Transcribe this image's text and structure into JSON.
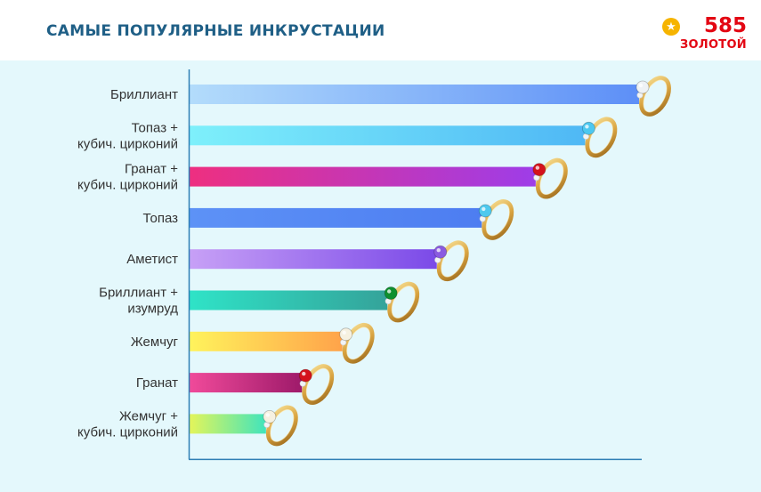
{
  "header": {
    "title": "САМЫЕ ПОПУЛЯРНЫЕ ИНКРУСТАЦИИ"
  },
  "logo": {
    "number": "585",
    "word": "ЗОЛОТОЙ",
    "star_icon": "star-icon",
    "color": "#e30613"
  },
  "chart_data": {
    "type": "bar",
    "orientation": "horizontal",
    "title": "САМЫЕ ПОПУЛЯРНЫЕ ИНКРУСТАЦИИ",
    "categories": [
      [
        "Бриллиант"
      ],
      [
        "Топаз +",
        "кубич. цирконий"
      ],
      [
        "Гранат +",
        "кубич. цирконий"
      ],
      [
        "Топаз"
      ],
      [
        "Аметист"
      ],
      [
        "Бриллиант +",
        "изумруд"
      ],
      [
        "Жемчуг"
      ],
      [
        "Гранат"
      ],
      [
        "Жемчуг +",
        "кубич. цирконий"
      ]
    ],
    "values": [
      100,
      88,
      77,
      65,
      55,
      44,
      34,
      25,
      17
    ],
    "value_scale": "relative, top bar = 100",
    "xlim": [
      0,
      100
    ],
    "grid": false,
    "legend": "none",
    "bar_gradients": [
      [
        "#b3dcfb",
        "#5d8ff7"
      ],
      [
        "#7ef0fb",
        "#4fb8f5"
      ],
      [
        "#ee2f80",
        "#9e3de8"
      ],
      [
        "#5d92f6",
        "#4d7df1"
      ],
      [
        "#c7a0f6",
        "#7b4ae8"
      ],
      [
        "#2fe3c7",
        "#34a39a"
      ],
      [
        "#fff35c",
        "#ffa34a"
      ],
      [
        "#f04a9a",
        "#9e1a6a"
      ],
      [
        "#e4f55a",
        "#40e4bc"
      ]
    ],
    "gem_colors": [
      "#eef2f5",
      "#4cc8f0",
      "#d4121c",
      "#4fc9ee",
      "#8b5ae0",
      "#0f8f2f",
      "#f6f1e1",
      "#d4121c",
      "#f6f1e1"
    ],
    "marker_icon": "ring-icon"
  }
}
